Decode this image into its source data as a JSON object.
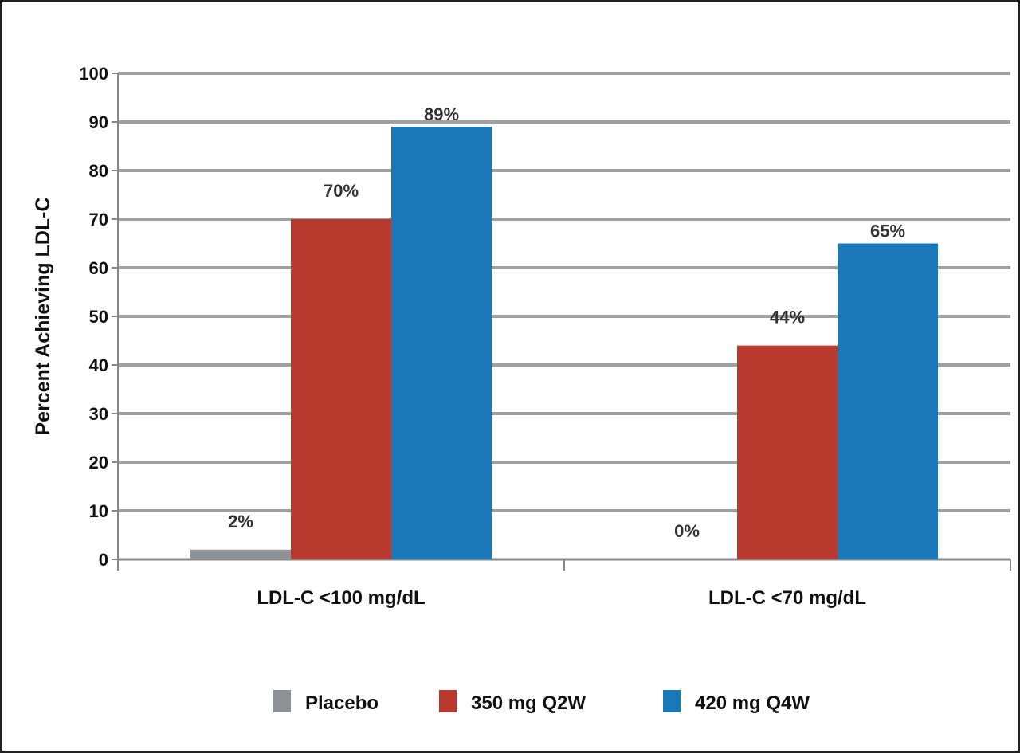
{
  "chart_data": {
    "type": "bar",
    "title": "",
    "xlabel": "",
    "ylabel": "Percent Achieving LDL-C",
    "ylim": [
      0,
      100
    ],
    "yticks": [
      0,
      10,
      20,
      30,
      40,
      50,
      60,
      70,
      80,
      90,
      100
    ],
    "grid": true,
    "legend_position": "bottom",
    "categories": [
      "LDL-C <100 mg/dL",
      "LDL-C <70 mg/dL"
    ],
    "series": [
      {
        "name": "Placebo",
        "color": "#8c9196",
        "values": [
          2,
          0
        ],
        "labels": [
          "2%",
          "0%"
        ]
      },
      {
        "name": "350 mg Q2W",
        "color": "#b83a2f",
        "values": [
          70,
          44
        ],
        "labels": [
          "70%",
          "44%"
        ]
      },
      {
        "name": "420 mg Q4W",
        "color": "#1a77b8",
        "values": [
          89,
          65
        ],
        "labels": [
          "89%",
          "65%"
        ]
      }
    ]
  }
}
